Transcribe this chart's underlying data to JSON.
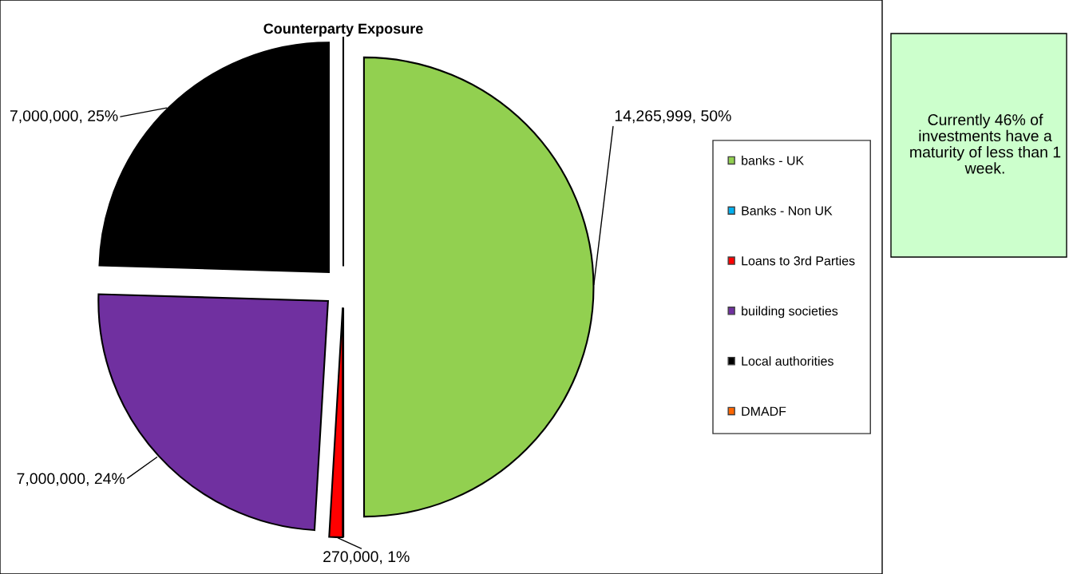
{
  "chart_data": {
    "type": "pie",
    "title": "Counterparty Exposure",
    "categories": [
      "banks - UK",
      "Banks - Non UK",
      "Loans to 3rd Parties",
      "building societies",
      "Local authorities",
      "DMADF"
    ],
    "values": [
      14265999,
      0,
      270000,
      7000000,
      7000000,
      0
    ],
    "colors": [
      "#92d050",
      "#00b0f0",
      "#ff0000",
      "#7030a0",
      "#000000",
      "#ff6600"
    ],
    "value_labels": [
      "14,265,999, 50%",
      null,
      "270,000, 1%",
      "7,000,000, 24%",
      "7,000,000, 25%",
      null
    ],
    "legend": "right",
    "annotations": [
      "Currently 46% of investments have a maturity of less than 1 week."
    ]
  }
}
